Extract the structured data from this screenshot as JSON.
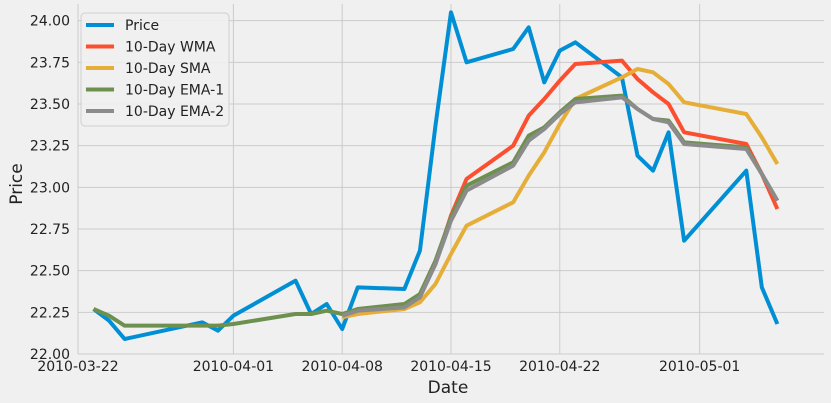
{
  "chart_data": {
    "type": "line",
    "title": "",
    "xlabel": "Date",
    "ylabel": "Price",
    "ylim": [
      22.0,
      24.1
    ],
    "xlim": [
      "2010-03-22",
      "2010-05-09"
    ],
    "grid": true,
    "legend_position": "top-left",
    "x_ticks": [
      "2010-03-22",
      "2010-04-01",
      "2010-04-08",
      "2010-04-15",
      "2010-04-22",
      "2010-05-01"
    ],
    "y_ticks": [
      "22.00",
      "22.25",
      "22.50",
      "22.75",
      "23.00",
      "23.25",
      "23.50",
      "23.75",
      "24.00"
    ],
    "x": [
      "2010-03-23",
      "2010-03-24",
      "2010-03-25",
      "2010-03-30",
      "2010-03-31",
      "2010-04-01",
      "2010-04-05",
      "2010-04-06",
      "2010-04-07",
      "2010-04-08",
      "2010-04-09",
      "2010-04-12",
      "2010-04-13",
      "2010-04-14",
      "2010-04-15",
      "2010-04-16",
      "2010-04-19",
      "2010-04-20",
      "2010-04-21",
      "2010-04-22",
      "2010-04-23",
      "2010-04-26",
      "2010-04-27",
      "2010-04-28",
      "2010-04-29",
      "2010-04-30",
      "2010-05-04",
      "2010-05-05",
      "2010-05-06"
    ],
    "series": [
      {
        "name": "Price",
        "color": "#008fd5",
        "values": [
          22.27,
          22.2,
          22.09,
          22.19,
          22.14,
          22.23,
          22.44,
          22.24,
          22.3,
          22.15,
          22.4,
          22.39,
          22.62,
          23.37,
          24.05,
          23.75,
          23.83,
          23.96,
          23.63,
          23.82,
          23.87,
          23.66,
          23.19,
          23.1,
          23.33,
          22.68,
          23.1,
          22.4,
          22.18
        ]
      },
      {
        "name": "10-Day WMA",
        "color": "#fc4f30",
        "values": [
          null,
          null,
          null,
          null,
          null,
          null,
          null,
          null,
          null,
          22.23,
          22.26,
          22.29,
          22.35,
          22.54,
          22.83,
          23.05,
          23.25,
          23.43,
          23.53,
          23.64,
          23.74,
          23.76,
          23.65,
          23.57,
          23.5,
          23.33,
          23.26,
          23.08,
          22.87
        ]
      },
      {
        "name": "10-Day SMA",
        "color": "#e5ae38",
        "values": [
          null,
          null,
          null,
          null,
          null,
          null,
          null,
          null,
          null,
          22.22,
          22.24,
          22.27,
          22.31,
          22.42,
          22.6,
          22.77,
          22.91,
          23.07,
          23.21,
          23.38,
          23.53,
          23.66,
          23.71,
          23.69,
          23.62,
          23.51,
          23.44,
          23.3,
          23.14
        ]
      },
      {
        "name": "10-Day EMA-1",
        "color": "#6d904f",
        "values": [
          22.27,
          22.23,
          22.17,
          22.17,
          22.17,
          22.18,
          22.24,
          22.24,
          22.26,
          22.24,
          22.27,
          22.3,
          22.36,
          22.56,
          22.82,
          23.01,
          23.15,
          23.31,
          23.36,
          23.45,
          23.53,
          23.55,
          23.47,
          23.41,
          23.4,
          23.27,
          23.24,
          23.08,
          22.92
        ]
      },
      {
        "name": "10-Day EMA-2",
        "color": "#8b8b8b",
        "values": [
          null,
          null,
          null,
          null,
          null,
          null,
          null,
          null,
          null,
          22.23,
          22.26,
          22.28,
          22.34,
          22.54,
          22.8,
          22.98,
          23.13,
          23.28,
          23.35,
          23.44,
          23.51,
          23.54,
          23.47,
          23.41,
          23.39,
          23.26,
          23.23,
          23.08,
          22.92
        ]
      }
    ]
  }
}
